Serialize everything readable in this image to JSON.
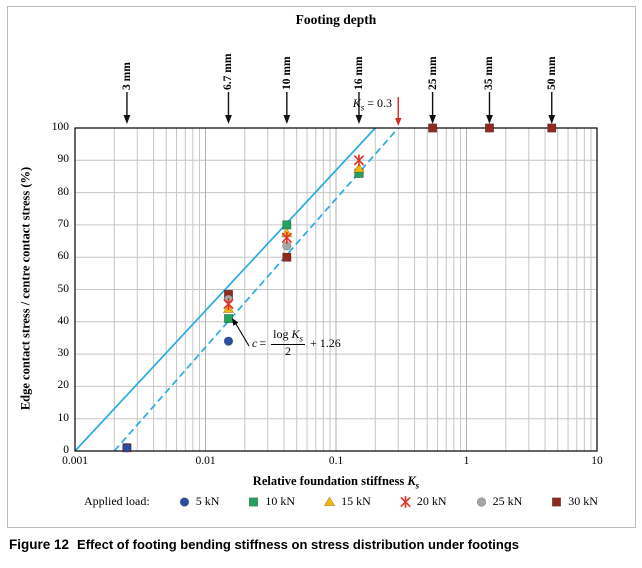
{
  "figure": {
    "caption_label": "Figure 12",
    "caption_text": "Effect of footing bending stiffness on stress distribution under footings"
  },
  "chart_data": {
    "type": "scatter",
    "title": "Footing depth",
    "x_axis": {
      "label": "Relative foundation stiffness",
      "symbol": "K",
      "symbol_sub": "s",
      "scale": "log",
      "range": [
        0.001,
        10
      ],
      "ticks": [
        "0.001",
        "0.01",
        "0.1",
        "1",
        "10"
      ]
    },
    "y_axis": {
      "label": "Edge contact stress / centre contact stress (%)",
      "range": [
        0,
        100
      ],
      "tick_step": 10
    },
    "grid": true,
    "legend_position": "bottom",
    "footing_depths": [
      {
        "label": "3 mm",
        "x": 0.0025
      },
      {
        "label": "6.7 mm",
        "x": 0.015
      },
      {
        "label": "10 mm",
        "x": 0.042
      },
      {
        "label": "16 mm",
        "x": 0.15
      },
      {
        "label": "25 mm",
        "x": 0.55
      },
      {
        "label": "35 mm",
        "x": 1.5
      },
      {
        "label": "50 mm",
        "x": 4.5
      }
    ],
    "series": [
      {
        "name": "5 kN",
        "marker": "circle",
        "color": "#2B4EA2",
        "points": [
          [
            0.0025,
            1
          ],
          [
            0.015,
            34
          ]
        ]
      },
      {
        "name": "10 kN",
        "marker": "square",
        "color": "#23A15D",
        "points": [
          [
            0.015,
            41
          ],
          [
            0.042,
            70
          ],
          [
            0.15,
            86
          ]
        ]
      },
      {
        "name": "15 kN",
        "marker": "triangle",
        "color": "#F2B50C",
        "points": [
          [
            0.015,
            44
          ],
          [
            0.042,
            67.5
          ],
          [
            0.15,
            87.5
          ]
        ]
      },
      {
        "name": "20 kN",
        "marker": "x",
        "color": "#E0322A",
        "points": [
          [
            0.015,
            45.5
          ],
          [
            0.042,
            66
          ],
          [
            0.15,
            90
          ]
        ]
      },
      {
        "name": "25 kN",
        "marker": "circle",
        "color": "#A6A6A6",
        "points": [
          [
            0.015,
            47
          ],
          [
            0.042,
            63.5
          ],
          [
            0.15,
            86
          ]
        ]
      },
      {
        "name": "30 kN",
        "marker": "square",
        "color": "#8E2A21",
        "points": [
          [
            0.0025,
            1
          ],
          [
            0.015,
            48.5
          ],
          [
            0.042,
            60
          ],
          [
            0.15,
            86
          ],
          [
            0.55,
            100
          ],
          [
            1.5,
            100
          ],
          [
            4.5,
            100
          ]
        ]
      }
    ],
    "lines": [
      {
        "name": "trend-line-solid",
        "style": "solid",
        "color": "#29ABE2",
        "from": [
          0.001,
          0
        ],
        "to": [
          0.2,
          100
        ]
      },
      {
        "name": "trend-line-dashed",
        "style": "dashed",
        "color": "#29ABE2",
        "from": [
          0.002,
          0
        ],
        "to": [
          0.3,
          100
        ]
      }
    ],
    "annotations": {
      "ks": {
        "symbol": "K",
        "sub": "s",
        "rest": " = 0.3",
        "x": 0.3,
        "color": "#D42B1E"
      },
      "equation": {
        "lhs": "c",
        "eq_sign": "=",
        "num_prefix": "log",
        "num_symbol": "K",
        "num_sub": "s",
        "den": "2",
        "tail": "+ 1.26"
      }
    },
    "legend": {
      "title": "Applied load:"
    }
  }
}
